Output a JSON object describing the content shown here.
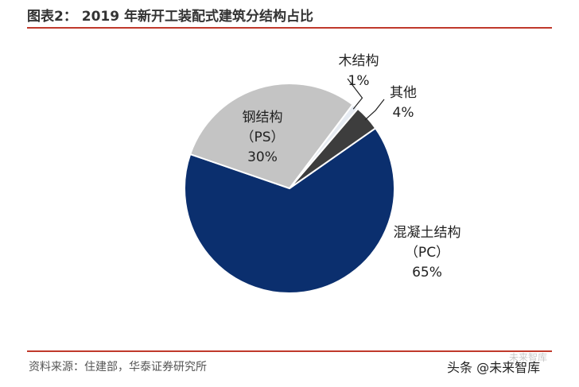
{
  "figure": {
    "title": "图表2：  2019 年新开工装配式建筑分结构占比",
    "source": "资料来源：住建部，华泰证券研究所",
    "watermark_top": "未来智库",
    "watermark": "头条 @未来智库",
    "rule_color": "#c0392b"
  },
  "chart_data": {
    "type": "pie",
    "title": "2019 年新开工装配式建筑分结构占比",
    "unit": "%",
    "start_angle_deg": 161,
    "direction": "counterclockwise",
    "slices": [
      {
        "name": "混凝土结构",
        "abbr": "（PC）",
        "value": 65,
        "label": "65%",
        "color": "#0b2f6e"
      },
      {
        "name": "其他",
        "abbr": "",
        "value": 4,
        "label": "4%",
        "color": "#3d3d3d"
      },
      {
        "name": "木结构",
        "abbr": "",
        "value": 1,
        "label": "1%",
        "color": "#e6ebf2"
      },
      {
        "name": "钢结构",
        "abbr": "（PS）",
        "value": 30,
        "label": "30%",
        "color": "#c4c4c4"
      }
    ]
  }
}
